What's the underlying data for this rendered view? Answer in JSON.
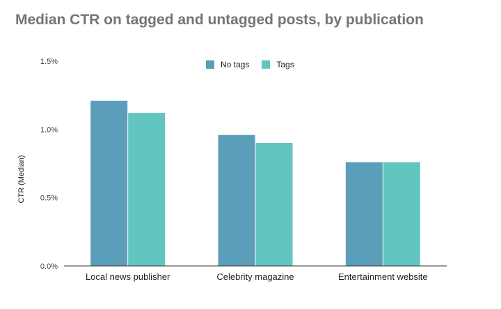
{
  "chart_data": {
    "type": "bar",
    "title": "Median CTR on tagged and untagged posts, by publication",
    "xlabel": "",
    "ylabel": "CTR (Median)",
    "ylim": [
      0,
      0.015
    ],
    "yticks": [
      {
        "value": 0,
        "label": "0.0%"
      },
      {
        "value": 0.005,
        "label": "0.5%"
      },
      {
        "value": 0.01,
        "label": "1.0%"
      },
      {
        "value": 0.015,
        "label": "1.5%"
      }
    ],
    "categories": [
      "Local news publisher",
      "Celebrity magazine",
      "Entertainment website"
    ],
    "series": [
      {
        "name": "No tags",
        "color": "#5a9eb9",
        "values": [
          0.0121,
          0.0096,
          0.0076
        ]
      },
      {
        "name": "Tags",
        "color": "#63c5bf",
        "values": [
          0.0112,
          0.009,
          0.0076
        ]
      }
    ],
    "grid": false,
    "legend_position": "top"
  }
}
